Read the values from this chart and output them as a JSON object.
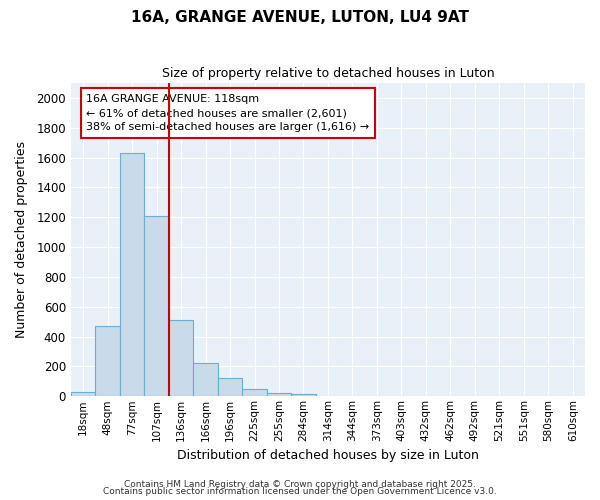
{
  "title1": "16A, GRANGE AVENUE, LUTON, LU4 9AT",
  "title2": "Size of property relative to detached houses in Luton",
  "xlabel": "Distribution of detached houses by size in Luton",
  "ylabel": "Number of detached properties",
  "bin_labels": [
    "18sqm",
    "48sqm",
    "77sqm",
    "107sqm",
    "136sqm",
    "166sqm",
    "196sqm",
    "225sqm",
    "255sqm",
    "284sqm",
    "314sqm",
    "344sqm",
    "373sqm",
    "403sqm",
    "432sqm",
    "462sqm",
    "492sqm",
    "521sqm",
    "551sqm",
    "580sqm",
    "610sqm"
  ],
  "bar_values": [
    30,
    470,
    1630,
    1210,
    510,
    220,
    125,
    48,
    25,
    18,
    0,
    0,
    0,
    0,
    0,
    0,
    0,
    0,
    0,
    0,
    0
  ],
  "bar_color": "#c9daea",
  "bar_edge_color": "#6aadd5",
  "vline_x": 3.5,
  "vline_color": "#cc0000",
  "annotation_text": "16A GRANGE AVENUE: 118sqm\n← 61% of detached houses are smaller (2,601)\n38% of semi-detached houses are larger (1,616) →",
  "annotation_box_color": "#ffffff",
  "annotation_border_color": "#cc0000",
  "plot_bg_color": "#e8f0f8",
  "fig_bg_color": "#ffffff",
  "ylim": [
    0,
    2100
  ],
  "yticks": [
    0,
    200,
    400,
    600,
    800,
    1000,
    1200,
    1400,
    1600,
    1800,
    2000
  ],
  "footer1": "Contains HM Land Registry data © Crown copyright and database right 2025.",
  "footer2": "Contains public sector information licensed under the Open Government Licence v3.0."
}
